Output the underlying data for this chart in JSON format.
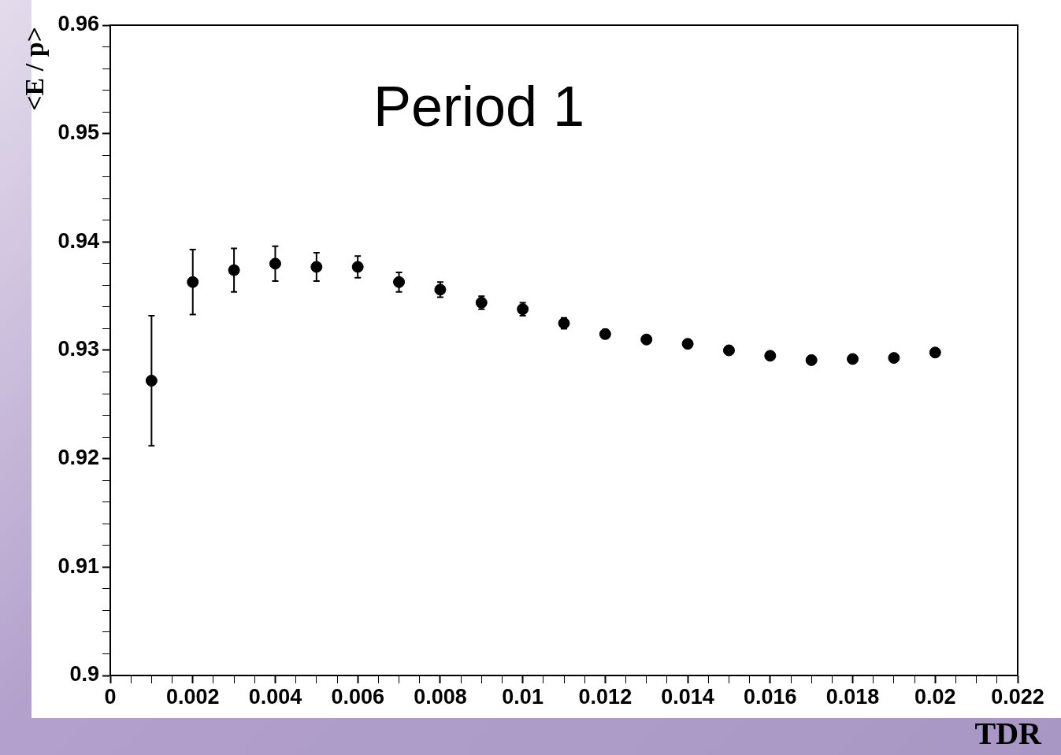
{
  "chart_data": {
    "type": "scatter",
    "xlabel": "TDR",
    "ylabel": "<E / p>",
    "annotations": [
      "Period 1"
    ],
    "x": [
      0.001,
      0.002,
      0.003,
      0.004,
      0.005,
      0.006,
      0.007,
      0.008,
      0.009,
      0.01,
      0.011,
      0.012,
      0.013,
      0.014,
      0.015,
      0.016,
      0.017,
      0.018,
      0.019,
      0.02
    ],
    "series": [
      {
        "color": "#000000",
        "values": [
          0.9272,
          0.9363,
          0.9374,
          0.938,
          0.9377,
          0.9377,
          0.9363,
          0.9356,
          0.9344,
          0.9338,
          0.9325,
          0.9315,
          0.931,
          0.9306,
          0.93,
          0.9295,
          0.9291,
          0.9292,
          0.9293,
          0.9298
        ],
        "errors": [
          0.006,
          0.003,
          0.002,
          0.0016,
          0.0013,
          0.001,
          0.0009,
          0.0007,
          0.0006,
          0.0006,
          0.0005,
          0.0004,
          null,
          null,
          null,
          null,
          null,
          null,
          null,
          null
        ]
      }
    ],
    "marker": "circle",
    "grid": false,
    "legend": false,
    "xlim": [
      0,
      0.022
    ],
    "xticks": [
      0,
      {
        "value": 0.0005,
        "label": null
      },
      {
        "value": 0.001,
        "label": null
      },
      {
        "value": 0.0015,
        "label": null
      },
      0.002,
      {
        "value": 0.0025,
        "label": null
      },
      {
        "value": 0.003,
        "label": null
      },
      {
        "value": 0.0035,
        "label": null
      },
      0.004,
      {
        "value": 0.0045,
        "label": null
      },
      {
        "value": 0.005,
        "label": null
      },
      {
        "value": 0.0055,
        "label": null
      },
      0.006,
      {
        "value": 0.0065,
        "label": null
      },
      {
        "value": 0.007,
        "label": null
      },
      {
        "value": 0.0075,
        "label": null
      },
      0.008,
      {
        "value": 0.0085,
        "label": null
      },
      {
        "value": 0.009,
        "label": null
      },
      {
        "value": 0.0095,
        "label": null
      },
      0.01,
      {
        "value": 0.0105,
        "label": null
      },
      {
        "value": 0.011,
        "label": null
      },
      {
        "value": 0.0115,
        "label": null
      },
      0.012,
      {
        "value": 0.0125,
        "label": null
      },
      {
        "value": 0.013,
        "label": null
      },
      {
        "value": 0.0135,
        "label": null
      },
      0.014,
      {
        "value": 0.0145,
        "label": null
      },
      {
        "value": 0.015,
        "label": null
      },
      {
        "value": 0.0155,
        "label": null
      },
      0.016,
      {
        "value": 0.0165,
        "label": null
      },
      {
        "value": 0.017,
        "label": null
      },
      {
        "value": 0.0175,
        "label": null
      },
      0.018,
      {
        "value": 0.0185,
        "label": null
      },
      {
        "value": 0.019,
        "label": null
      },
      {
        "value": 0.0195,
        "label": null
      },
      0.02,
      {
        "value": 0.0205,
        "label": null
      },
      {
        "value": 0.021,
        "label": null
      },
      {
        "value": 0.0215,
        "label": null
      },
      0.022
    ],
    "ylim": [
      0.9,
      0.96
    ],
    "yticks": [
      0.9,
      {
        "value": 0.902,
        "label": null
      },
      {
        "value": 0.904,
        "label": null
      },
      {
        "value": 0.906,
        "label": null
      },
      {
        "value": 0.908,
        "label": null
      },
      0.91,
      {
        "value": 0.912,
        "label": null
      },
      {
        "value": 0.914,
        "label": null
      },
      {
        "value": 0.916,
        "label": null
      },
      {
        "value": 0.918,
        "label": null
      },
      0.92,
      {
        "value": 0.922,
        "label": null
      },
      {
        "value": 0.924,
        "label": null
      },
      {
        "value": 0.926,
        "label": null
      },
      {
        "value": 0.928,
        "label": null
      },
      0.93,
      {
        "value": 0.932,
        "label": null
      },
      {
        "value": 0.934,
        "label": null
      },
      {
        "value": 0.936,
        "label": null
      },
      {
        "value": 0.938,
        "label": null
      },
      0.94,
      {
        "value": 0.942,
        "label": null
      },
      {
        "value": 0.944,
        "label": null
      },
      {
        "value": 0.946,
        "label": null
      },
      {
        "value": 0.948,
        "label": null
      },
      0.95,
      {
        "value": 0.952,
        "label": null
      },
      {
        "value": 0.954,
        "label": null
      },
      {
        "value": 0.956,
        "label": null
      },
      {
        "value": 0.958,
        "label": null
      },
      0.96
    ]
  }
}
